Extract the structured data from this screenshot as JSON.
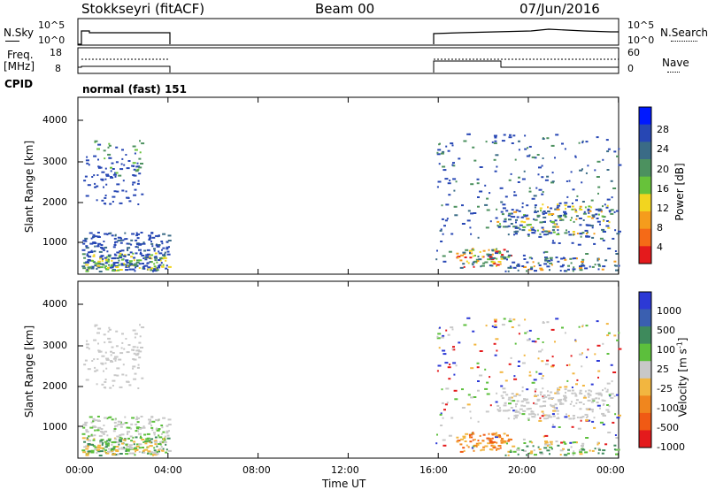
{
  "header": {
    "title": "Stokkseyri (fitACF)",
    "beam": "Beam 00",
    "date": "07/Jun/2016"
  },
  "top_panels": {
    "nsky": {
      "label": "N.Sky",
      "ticks": [
        "10^5",
        "10^0"
      ]
    },
    "nsearch": {
      "label": "N.Search",
      "ticks": [
        "10^5",
        "10^0"
      ]
    },
    "freq": {
      "label1": "Freq.",
      "label2": "[MHz]",
      "ticks": [
        "18",
        "8"
      ]
    },
    "nave": {
      "label": "Nave",
      "ticks": [
        "60",
        "0"
      ]
    },
    "cpid": {
      "label": "CPID",
      "text": "normal (fast) 151"
    }
  },
  "chart_data": [
    {
      "type": "heatmap",
      "ylabel": "Slant Range [km]",
      "y_ticks": [
        "4000",
        "3000",
        "2000",
        "1000"
      ],
      "colorbar": {
        "label": "Power [dB]",
        "ticks": [
          "28",
          "24",
          "20",
          "16",
          "12",
          "8",
          "4"
        ],
        "colors": [
          "#0019ff",
          "#2747b4",
          "#3a6b86",
          "#4c915f",
          "#67c23a",
          "#f2d51f",
          "#f59c1c",
          "#f56a17",
          "#e41a1c"
        ]
      },
      "x_range": [
        "00:00",
        "00:00"
      ],
      "gaps": [
        [
          "04:00",
          "16:00"
        ]
      ]
    },
    {
      "type": "heatmap",
      "ylabel": "Slant Range [km]",
      "y_ticks": [
        "4000",
        "3000",
        "2000",
        "1000"
      ],
      "colorbar": {
        "label": "Velocity [m s-1]",
        "label_main": "Velocity",
        "label_unit": "[m s",
        "label_exp": "-1",
        "label_close": "]",
        "ticks": [
          "1000",
          "500",
          "100",
          "25",
          "-25",
          "-100",
          "-500",
          "-1000"
        ],
        "colors": [
          "#2c39d6",
          "#3a5fb0",
          "#3e8a5c",
          "#5cbf3c",
          "#c8c8c8",
          "#f2b640",
          "#f0861e",
          "#f05a14",
          "#e41a1c"
        ]
      },
      "x_range": [
        "00:00",
        "00:00"
      ],
      "gaps": [
        [
          "04:00",
          "16:00"
        ]
      ]
    }
  ],
  "x_axis": {
    "ticks": [
      "00:00",
      "04:00",
      "08:00",
      "12:00",
      "16:00",
      "20:00",
      "00:00"
    ],
    "label": "Time UT"
  }
}
